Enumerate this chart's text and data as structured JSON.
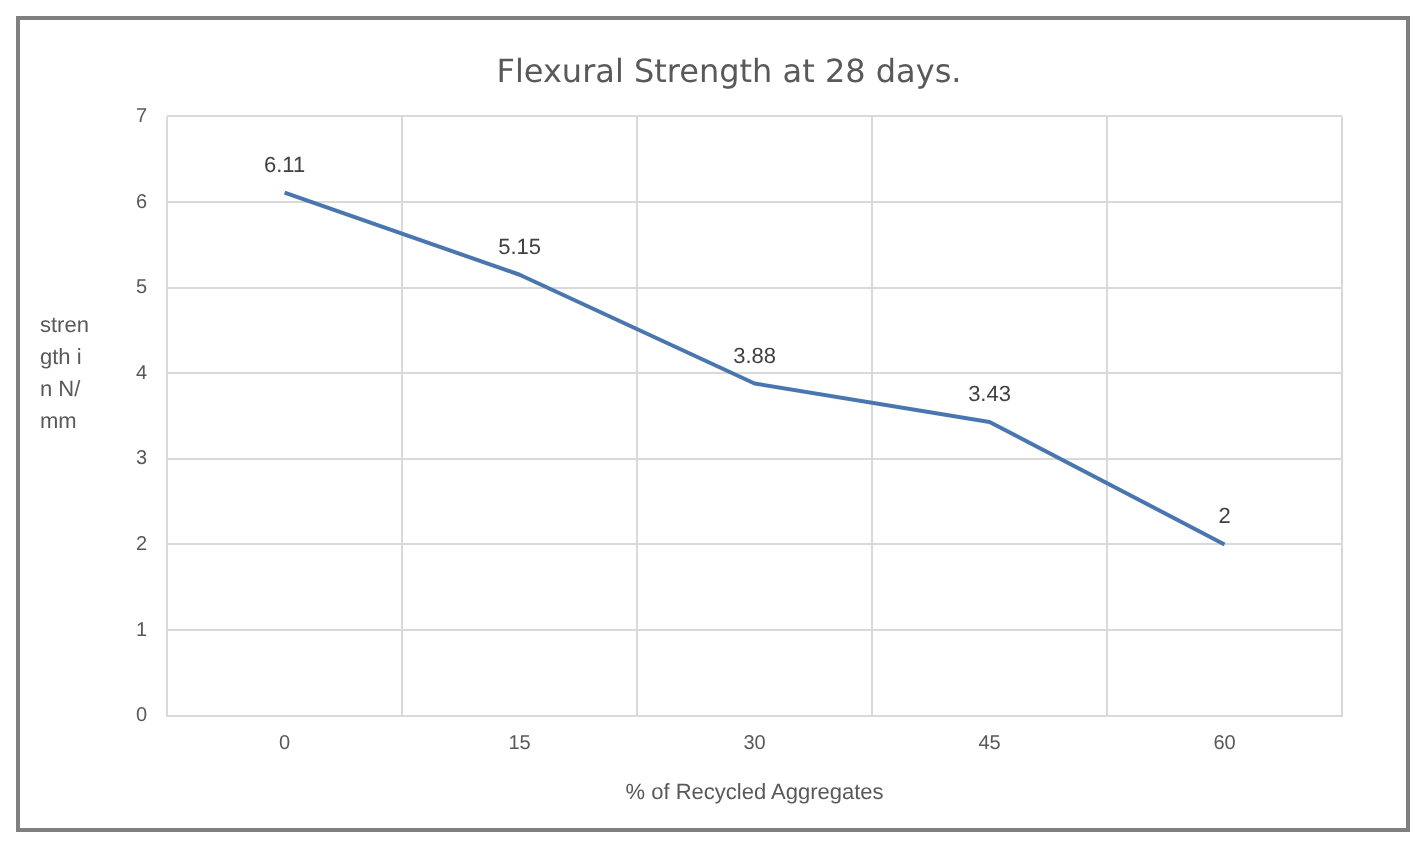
{
  "chart_data": {
    "type": "line",
    "title": "Flexural Strength at 28 days.",
    "xlabel": "% of Recycled Aggregates",
    "ylabel": "strength in N/mm",
    "categories": [
      "0",
      "15",
      "30",
      "45",
      "60"
    ],
    "series": [
      {
        "color": "#4a76b0",
        "values": [
          6.11,
          5.15,
          3.88,
          3.43,
          2
        ]
      }
    ],
    "ylim": [
      0,
      7
    ],
    "yticks": [
      0,
      1,
      2,
      3,
      4,
      5,
      6,
      7
    ],
    "grid": true,
    "data_labels": true,
    "marker": "none",
    "legend": false
  }
}
